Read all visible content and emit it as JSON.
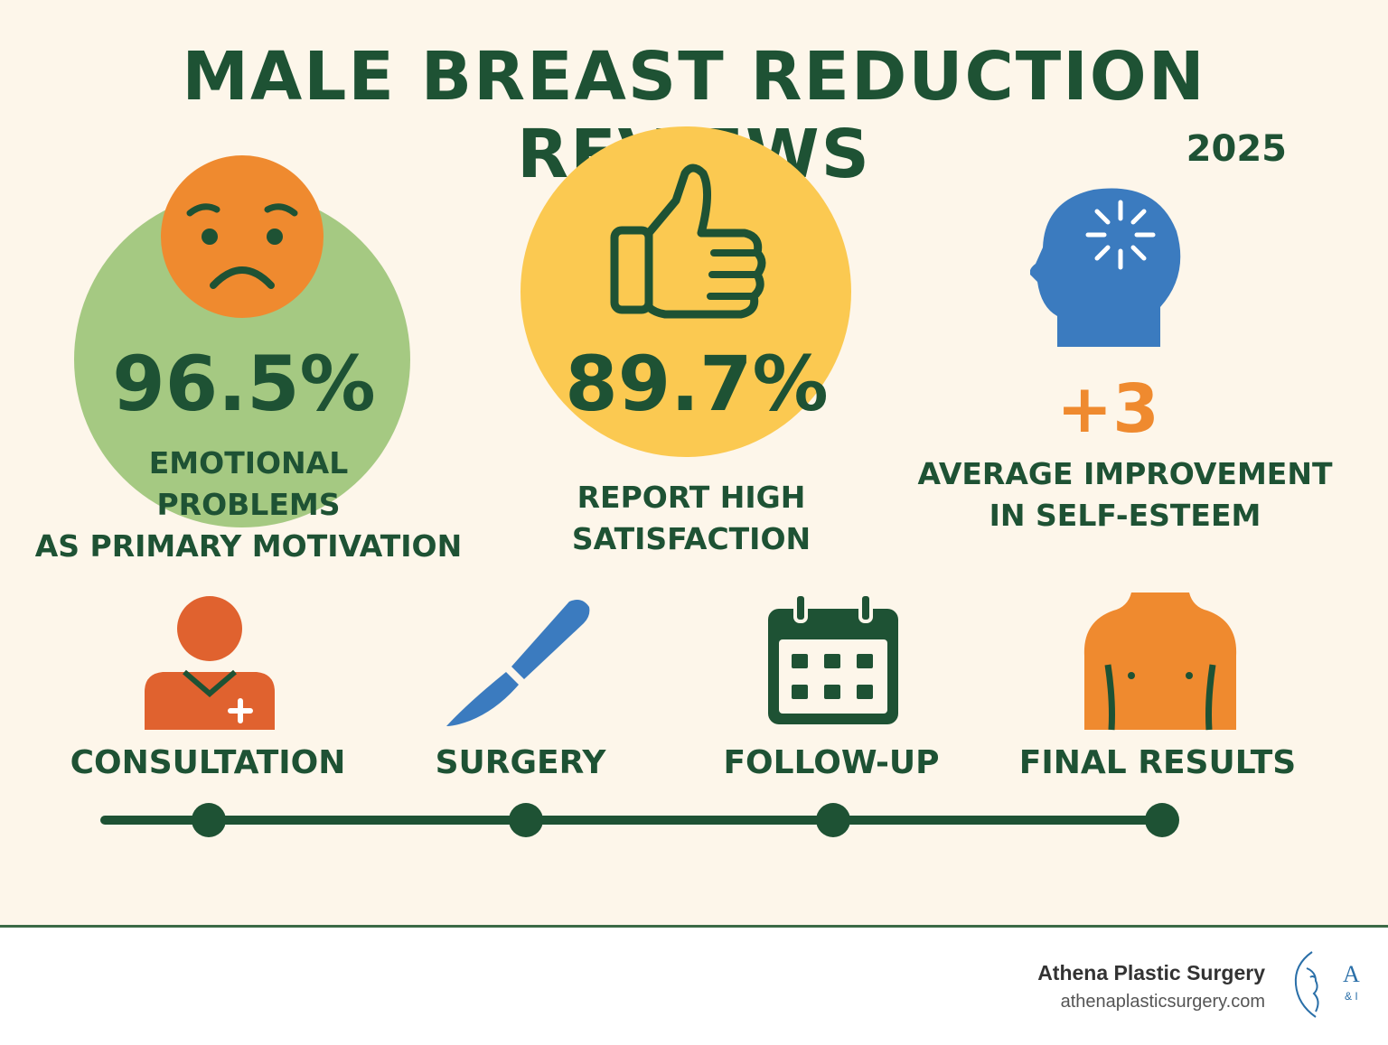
{
  "header": {
    "title": "MALE BREAST REDUCTION REVIEWS",
    "year": "2025"
  },
  "stats": [
    {
      "icon": "sad-face-icon",
      "value": "96.5%",
      "label_lines": [
        "EMOTIONAL",
        "PROBLEMS",
        "AS PRIMARY MOTIVATION"
      ]
    },
    {
      "icon": "thumbs-up-icon",
      "value": "89.7%",
      "label_lines": [
        "REPORT HIGH",
        "SATISFACTION"
      ]
    },
    {
      "icon": "head-brain-icon",
      "value": "+3",
      "label_lines": [
        "AVERAGE IMPROVEMENT",
        "IN SELF-ESTEEM"
      ]
    }
  ],
  "timeline": {
    "steps": [
      {
        "icon": "doctor-icon",
        "label": "CONSULTATION"
      },
      {
        "icon": "scalpel-icon",
        "label": "SURGERY"
      },
      {
        "icon": "calendar-icon",
        "label": "FOLLOW-UP"
      },
      {
        "icon": "torso-icon",
        "label": "FINAL RESULTS"
      }
    ]
  },
  "footer": {
    "brand_name": "Athena Plastic Surgery",
    "brand_url": "athenaplasticsurgery.com",
    "logo_letters": "A",
    "logo_sub": "& I"
  },
  "colors": {
    "background": "#fdf6ea",
    "dark_green": "#1e5234",
    "light_green": "#a5c982",
    "orange": "#ef8a2f",
    "yellow": "#fbc951",
    "blue": "#3b7bbf",
    "red_orange": "#e0622f"
  }
}
